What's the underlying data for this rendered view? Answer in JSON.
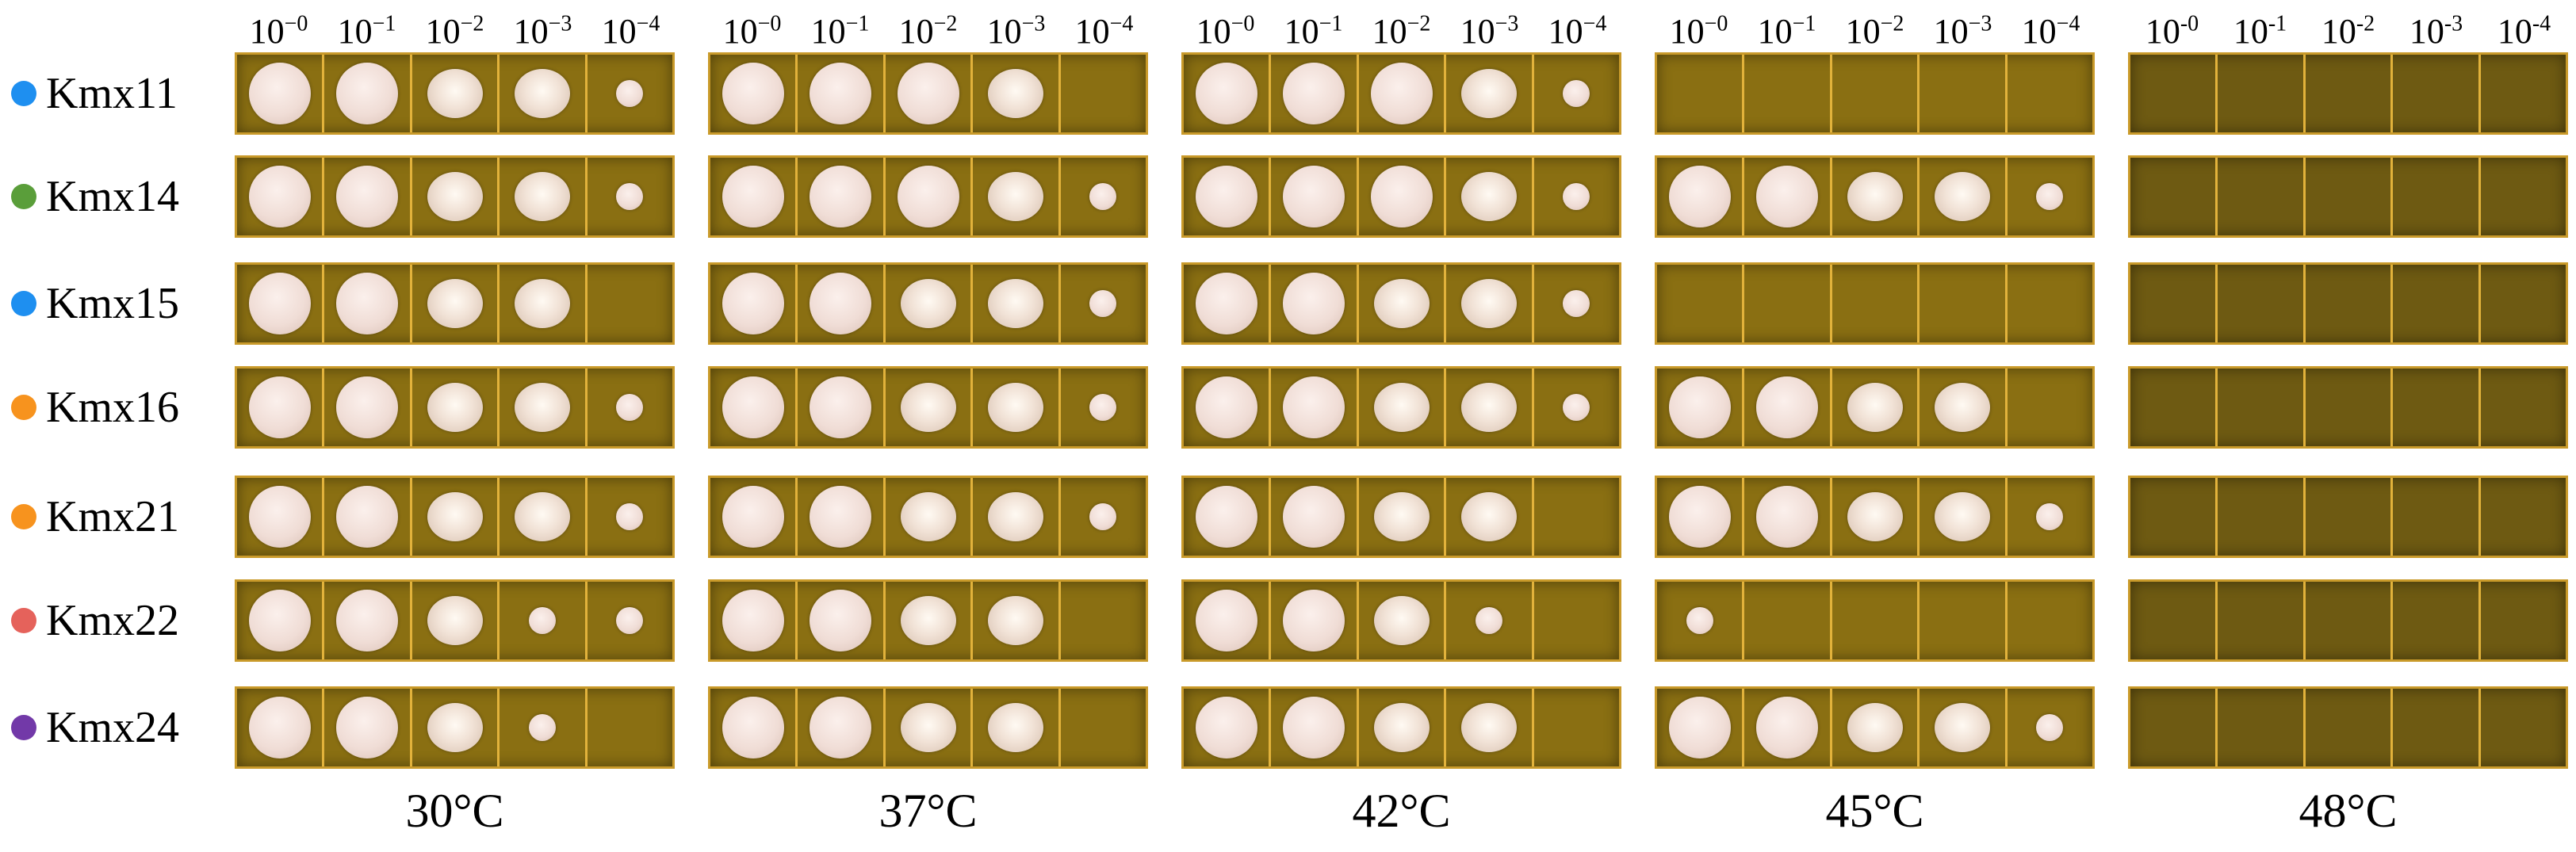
{
  "strains": [
    {
      "label": "Kmx11",
      "color": "#1e8ff0"
    },
    {
      "label": "Kmx14",
      "color": "#5a9e3a"
    },
    {
      "label": "Kmx15",
      "color": "#1e8ff0"
    },
    {
      "label": "Kmx16",
      "color": "#f7931e"
    },
    {
      "label": "Kmx21",
      "color": "#f7931e"
    },
    {
      "label": "Kmx22",
      "color": "#e5625b"
    },
    {
      "label": "Kmx24",
      "color": "#7239a8"
    }
  ],
  "dilutions": [
    {
      "base": "10",
      "exp": "−0"
    },
    {
      "base": "10",
      "exp": "−1"
    },
    {
      "base": "10",
      "exp": "−2"
    },
    {
      "base": "10",
      "exp": "−3"
    },
    {
      "base": "10",
      "exp": "−4"
    }
  ],
  "dilutions_48": [
    {
      "base": "10",
      "exp": "-0"
    },
    {
      "base": "10",
      "exp": "-1"
    },
    {
      "base": "10",
      "exp": "-2"
    },
    {
      "base": "10",
      "exp": "-3"
    },
    {
      "base": "10",
      "exp": "-4"
    }
  ],
  "temperatures": [
    {
      "label": "30°C",
      "growth": [
        [
          3,
          3,
          2,
          2,
          1
        ],
        [
          3,
          3,
          2,
          2,
          1
        ],
        [
          3,
          3,
          2,
          2,
          0
        ],
        [
          3,
          3,
          2,
          2,
          1
        ],
        [
          3,
          3,
          2,
          2,
          1
        ],
        [
          3,
          3,
          2,
          1,
          1
        ],
        [
          3,
          3,
          2,
          1,
          0
        ]
      ]
    },
    {
      "label": "37°C",
      "growth": [
        [
          3,
          3,
          3,
          2,
          0
        ],
        [
          3,
          3,
          3,
          2,
          1
        ],
        [
          3,
          3,
          2,
          2,
          1
        ],
        [
          3,
          3,
          2,
          2,
          1
        ],
        [
          3,
          3,
          2,
          2,
          1
        ],
        [
          3,
          3,
          2,
          2,
          0
        ],
        [
          3,
          3,
          2,
          2,
          0
        ]
      ]
    },
    {
      "label": "42°C",
      "growth": [
        [
          3,
          3,
          3,
          2,
          1
        ],
        [
          3,
          3,
          3,
          2,
          1
        ],
        [
          3,
          3,
          2,
          2,
          1
        ],
        [
          3,
          3,
          2,
          2,
          1
        ],
        [
          3,
          3,
          2,
          2,
          0
        ],
        [
          3,
          3,
          2,
          1,
          0
        ],
        [
          3,
          3,
          2,
          2,
          0
        ]
      ]
    },
    {
      "label": "45°C",
      "growth": [
        [
          0,
          0,
          0,
          0,
          0
        ],
        [
          3,
          3,
          2,
          2,
          1
        ],
        [
          0,
          0,
          0,
          0,
          0
        ],
        [
          3,
          3,
          2,
          2,
          0
        ],
        [
          3,
          3,
          2,
          2,
          1
        ],
        [
          1,
          0,
          0,
          0,
          0
        ],
        [
          3,
          3,
          2,
          2,
          1
        ]
      ]
    },
    {
      "label": "48°C",
      "growth": [
        [
          0,
          0,
          0,
          0,
          0
        ],
        [
          0,
          0,
          0,
          0,
          0
        ],
        [
          0,
          0,
          0,
          0,
          0
        ],
        [
          0,
          0,
          0,
          0,
          0
        ],
        [
          0,
          0,
          0,
          0,
          0
        ],
        [
          0,
          0,
          0,
          0,
          0
        ],
        [
          0,
          0,
          0,
          0,
          0
        ]
      ]
    }
  ]
}
